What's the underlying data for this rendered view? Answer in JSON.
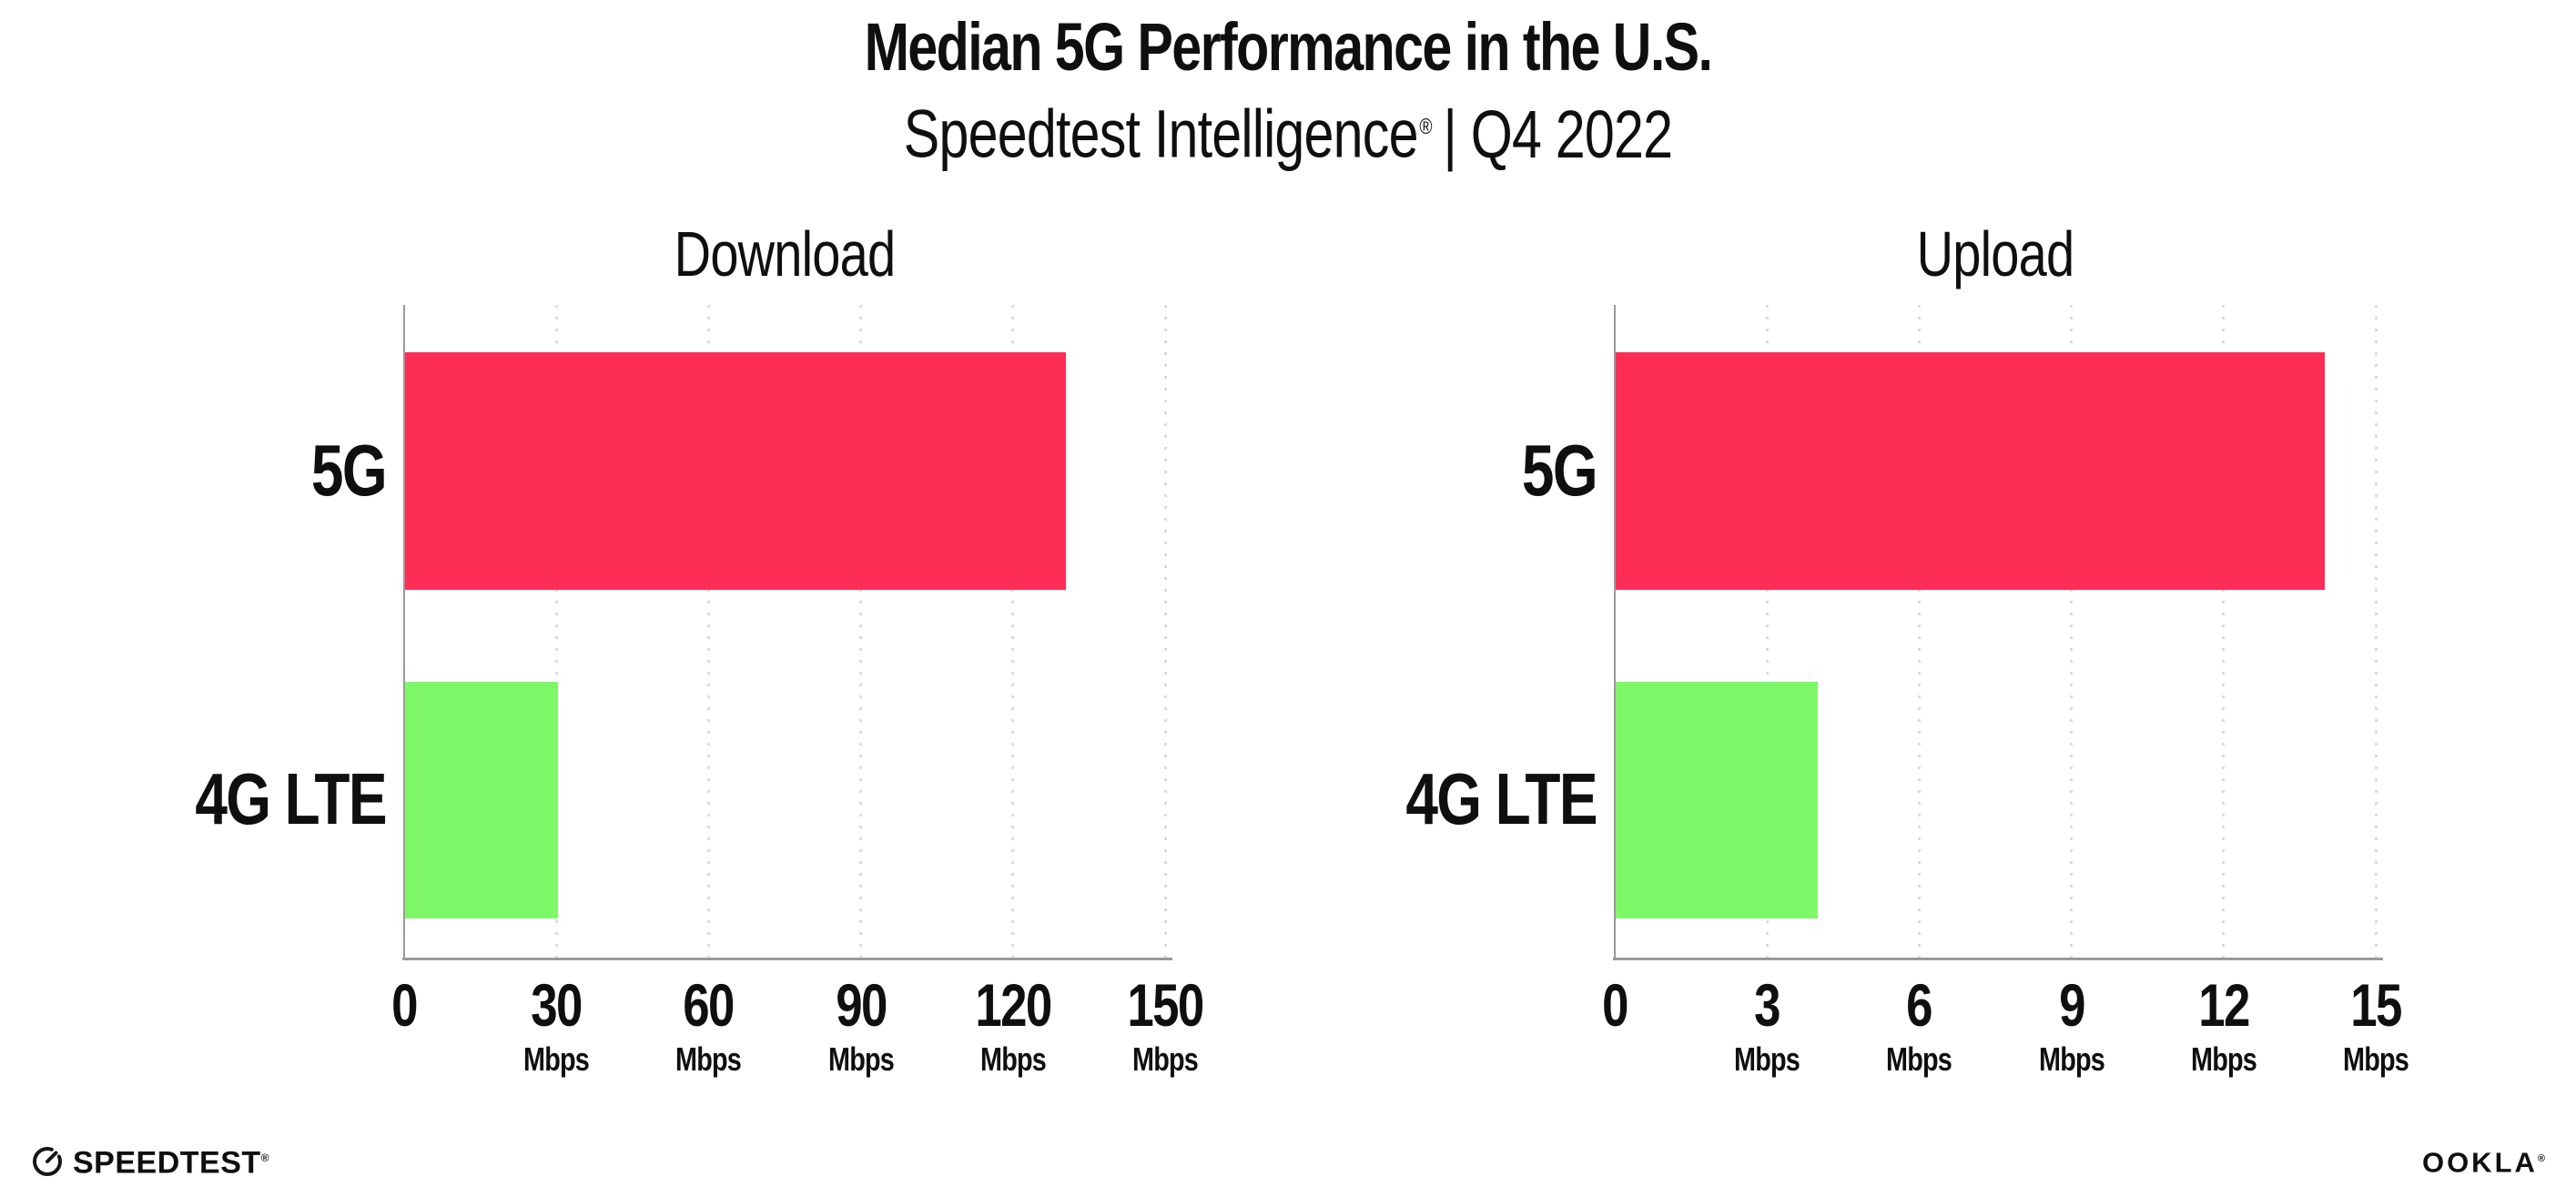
{
  "header": {
    "title": "Median 5G Performance in the U.S.",
    "subtitle_brand": "Speedtest Intelligence",
    "subtitle_reg": "®",
    "subtitle_rest": "| Q4 2022"
  },
  "chart_data": [
    {
      "type": "bar",
      "orientation": "horizontal",
      "title": "Download",
      "categories": [
        "5G",
        "4G LTE"
      ],
      "values": [
        130.4,
        30.3
      ],
      "unit": "Mbps",
      "xlim": [
        0,
        150
      ],
      "xticks": [
        0,
        30,
        60,
        90,
        120,
        150
      ],
      "xtick_unit": "Mbps",
      "grid": "vertical-dotted",
      "legend": "none",
      "bar_colors": [
        "#FD2D55",
        "#7EF868"
      ]
    },
    {
      "type": "bar",
      "orientation": "horizontal",
      "title": "Upload",
      "categories": [
        "5G",
        "4G LTE"
      ],
      "values": [
        14.0,
        4.0
      ],
      "unit": "Mbps",
      "xlim": [
        0,
        15
      ],
      "xticks": [
        0,
        3,
        6,
        9,
        12,
        15
      ],
      "xtick_unit": "Mbps",
      "grid": "vertical-dotted",
      "legend": "none",
      "bar_colors": [
        "#FD2D55",
        "#7EF868"
      ]
    }
  ],
  "footer": {
    "speedtest_label": "SPEEDTEST",
    "speedtest_reg": "®",
    "ookla_label": "OOKLA",
    "ookla_reg": "®"
  },
  "colors": {
    "bar_5g": "#FD2D55",
    "bar_4g_lte": "#7EF868",
    "axis": "#9A9A9A",
    "grid_dot": "#D9DAE6",
    "text": "#0F0F0F"
  }
}
